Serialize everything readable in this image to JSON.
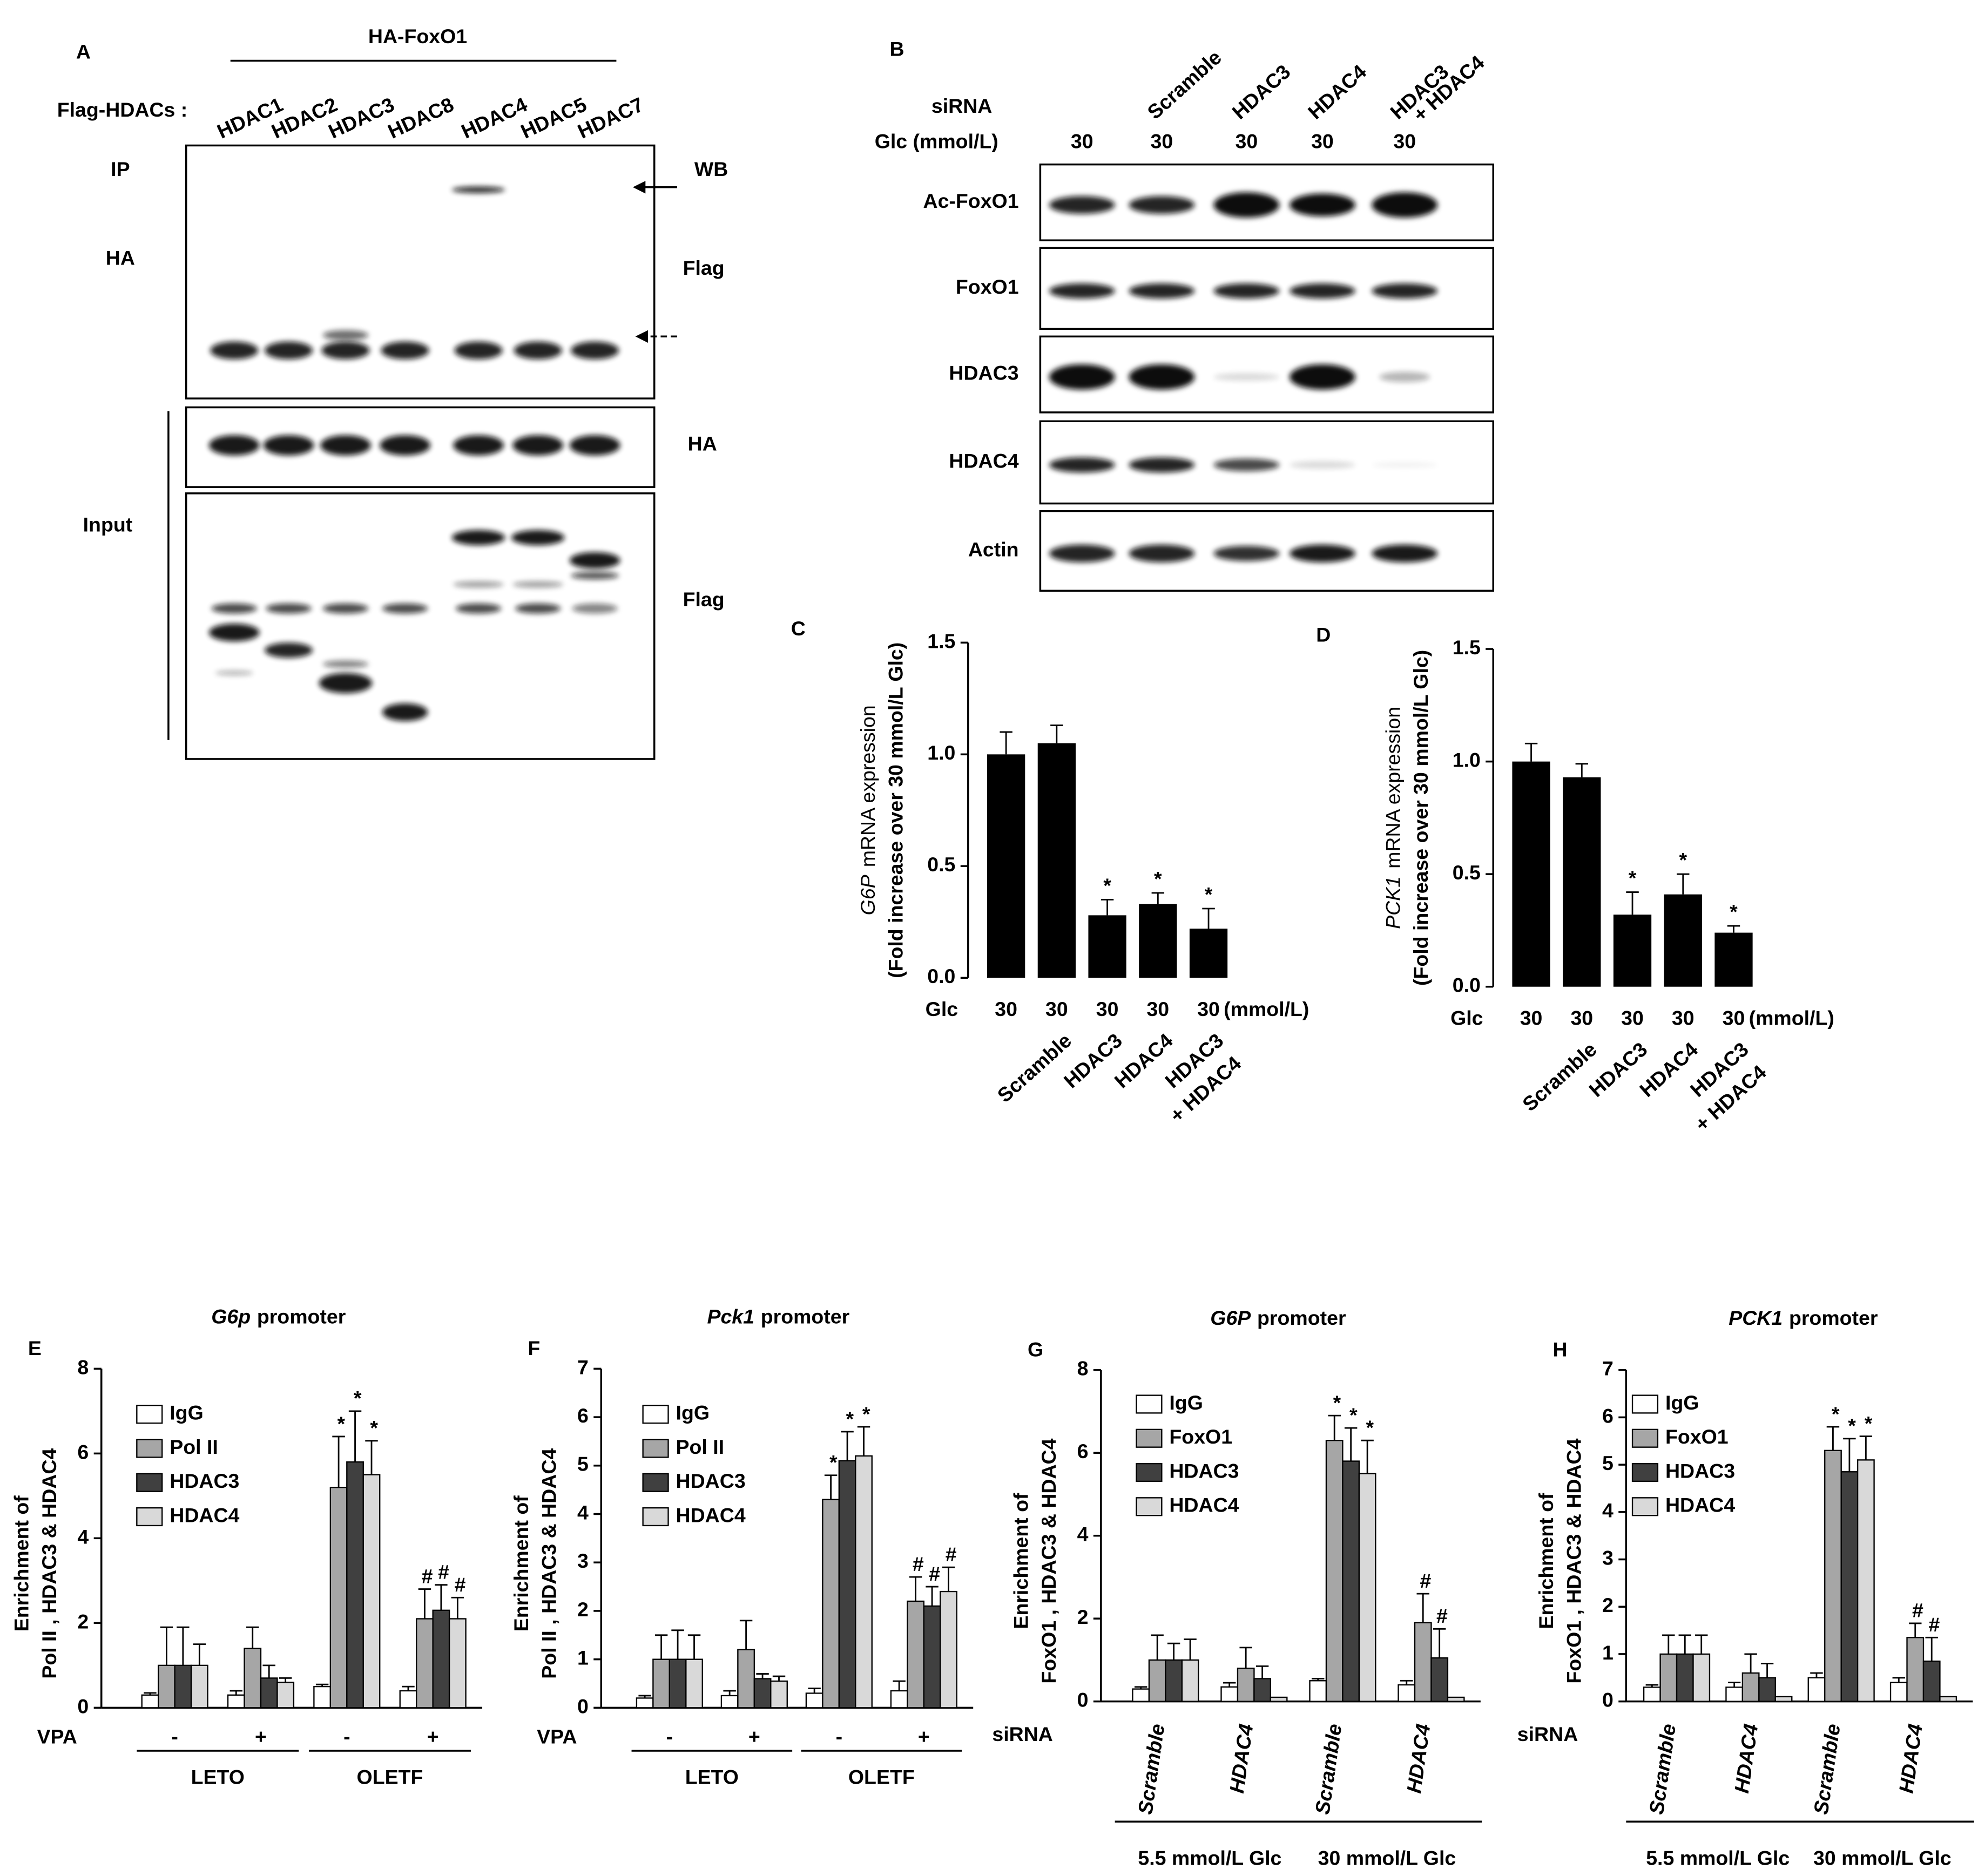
{
  "blots": {
    "A": {
      "label": "A",
      "title": "HA-FoxO1",
      "row_label": "Flag-HDACs :",
      "lanes": [
        "HDAC1",
        "HDAC2",
        "HDAC3",
        "HDAC8",
        "HDAC4",
        "HDAC5",
        "HDAC7"
      ],
      "left_labels": [
        "IP",
        "HA",
        "Input"
      ],
      "right_labels": [
        "WB",
        "Flag",
        "HA",
        "Flag"
      ]
    },
    "B": {
      "label": "B",
      "row_labels": [
        "siRNA",
        "Glc (mmol/L)"
      ],
      "sirna": [
        null,
        "Scramble",
        "HDAC3",
        "HDAC4",
        [
          "HDAC3",
          "+ HDAC4"
        ]
      ],
      "glc": [
        30,
        30,
        30,
        30,
        30
      ],
      "rows": [
        "Ac-FoxO1",
        "FoxO1",
        "HDAC3",
        "HDAC4",
        "Actin"
      ]
    }
  },
  "chart_data": [
    {
      "type": "bar",
      "label": "C",
      "ylabel_italic": "G6P",
      "ylabel": "mRNA expression",
      "ylabel2": "(Fold increase  over 30  mmol/L Glc)",
      "categories": [
        null,
        "Scramble",
        "HDAC3",
        "HDAC4",
        [
          "HDAC3",
          "+ HDAC4"
        ]
      ],
      "x_label": "Glc",
      "glc": [
        30,
        30,
        30,
        30,
        30
      ],
      "glc_unit": "(mmol/L)",
      "values": [
        1.0,
        1.05,
        0.28,
        0.33,
        0.22
      ],
      "errors": [
        0.1,
        0.08,
        0.07,
        0.05,
        0.09
      ],
      "annotations": [
        null,
        null,
        "*",
        "*",
        "*"
      ],
      "color": "#000000",
      "ylim": [
        0,
        1.5
      ],
      "yticks": [
        {
          "value": 0,
          "label": "0.0"
        },
        {
          "value": 0.5,
          "label": "0.5"
        },
        {
          "value": 1,
          "label": "1.0"
        },
        {
          "value": 1.5,
          "label": "1.5"
        }
      ]
    },
    {
      "type": "bar",
      "label": "D",
      "ylabel_italic": "PCK1",
      "ylabel": "mRNA expression",
      "ylabel2": "(Fold increase  over 30  mmol/L Glc)",
      "categories": [
        null,
        "Scramble",
        "HDAC3",
        "HDAC4",
        [
          "HDAC3",
          "+ HDAC4"
        ]
      ],
      "x_label": "Glc",
      "glc": [
        30,
        30,
        30,
        30,
        30
      ],
      "glc_unit": "(mmol/L)",
      "values": [
        1.0,
        0.93,
        0.32,
        0.41,
        0.24
      ],
      "errors": [
        0.08,
        0.06,
        0.1,
        0.09,
        0.03
      ],
      "annotations": [
        null,
        null,
        "*",
        "*",
        "*"
      ],
      "color": "#000000",
      "ylim": [
        0,
        1.5
      ],
      "yticks": [
        {
          "value": 0,
          "label": "0.0"
        },
        {
          "value": 0.5,
          "label": "0.5"
        },
        {
          "value": 1,
          "label": "1.0"
        },
        {
          "value": 1.5,
          "label": "1.5"
        }
      ]
    },
    {
      "type": "grouped_bar",
      "label": "E",
      "title_italic": "G6p",
      "title": "promoter",
      "ylabel": [
        "Enrichment of",
        "Pol II , HDAC3  & HDAC4"
      ],
      "x_label": "VPA",
      "categories": [
        "-",
        "+",
        "-",
        "+"
      ],
      "group_labels": [
        "LETO",
        "OLETF"
      ],
      "series": [
        {
          "name": "IgG",
          "color": "#ffffff",
          "values": [
            0.3,
            0.3,
            0.5,
            0.4
          ],
          "errors": [
            0.05,
            0.1,
            0.05,
            0.1
          ],
          "annotations": [
            null,
            null,
            null,
            null
          ]
        },
        {
          "name": "Pol II",
          "color": "#a6a6a6",
          "values": [
            1.0,
            1.4,
            5.2,
            2.1
          ],
          "errors": [
            0.9,
            0.5,
            1.2,
            0.7
          ],
          "annotations": [
            null,
            null,
            "*",
            "#"
          ]
        },
        {
          "name": "HDAC3",
          "color": "#404040",
          "values": [
            1.0,
            0.7,
            5.8,
            2.3
          ],
          "errors": [
            0.9,
            0.3,
            1.2,
            0.6
          ],
          "annotations": [
            null,
            null,
            "*",
            "#"
          ]
        },
        {
          "name": "HDAC4",
          "color": "#d9d9d9",
          "values": [
            1.0,
            0.6,
            5.5,
            2.1
          ],
          "errors": [
            0.5,
            0.1,
            0.8,
            0.5
          ],
          "annotations": [
            null,
            null,
            "*",
            "#"
          ]
        }
      ],
      "ylim": [
        0,
        8
      ],
      "yticks": [
        0,
        2,
        4,
        6,
        8
      ]
    },
    {
      "type": "grouped_bar",
      "label": "F",
      "title_italic": "Pck1",
      "title": "promoter",
      "ylabel": [
        "Enrichment of",
        "Pol II , HDAC3  & HDAC4"
      ],
      "x_label": "VPA",
      "categories": [
        "-",
        "+",
        "-",
        "+"
      ],
      "group_labels": [
        "LETO",
        "OLETF"
      ],
      "series": [
        {
          "name": "IgG",
          "color": "#ffffff",
          "values": [
            0.2,
            0.25,
            0.3,
            0.35
          ],
          "errors": [
            0.05,
            0.1,
            0.1,
            0.2
          ],
          "annotations": [
            null,
            null,
            null,
            null
          ]
        },
        {
          "name": "Pol II",
          "color": "#a6a6a6",
          "values": [
            1.0,
            1.2,
            4.3,
            2.2
          ],
          "errors": [
            0.5,
            0.6,
            0.5,
            0.5
          ],
          "annotations": [
            null,
            null,
            "*",
            "#"
          ]
        },
        {
          "name": "HDAC3",
          "color": "#404040",
          "values": [
            1.0,
            0.6,
            5.1,
            2.1
          ],
          "errors": [
            0.6,
            0.1,
            0.6,
            0.4
          ],
          "annotations": [
            null,
            null,
            "*",
            "#"
          ]
        },
        {
          "name": "HDAC4",
          "color": "#d9d9d9",
          "values": [
            1.0,
            0.55,
            5.2,
            2.4
          ],
          "errors": [
            0.5,
            0.1,
            0.6,
            0.5
          ],
          "annotations": [
            null,
            null,
            "*",
            "#"
          ]
        }
      ],
      "ylim": [
        0,
        7
      ],
      "yticks": [
        0,
        1,
        2,
        3,
        4,
        5,
        6,
        7
      ]
    },
    {
      "type": "grouped_bar",
      "label": "G",
      "title_italic": "G6P",
      "title": "promoter",
      "ylabel": [
        "Enrichment of",
        "FoxO1 , HDAC3  & HDAC4"
      ],
      "x_label": "siRNA",
      "categories": [
        "Scramble",
        "HDAC4",
        "Scramble",
        "HDAC4"
      ],
      "group_labels": [
        "5.5 mmol/L Glc",
        "30 mmol/L Glc"
      ],
      "series": [
        {
          "name": "IgG",
          "color": "#ffffff",
          "values": [
            0.3,
            0.35,
            0.5,
            0.4
          ],
          "errors": [
            0.05,
            0.1,
            0.05,
            0.1
          ],
          "annotations": [
            null,
            null,
            null,
            null
          ]
        },
        {
          "name": "FoxO1",
          "color": "#a6a6a6",
          "values": [
            1.0,
            0.8,
            6.3,
            1.9
          ],
          "errors": [
            0.6,
            0.5,
            0.6,
            0.7
          ],
          "annotations": [
            null,
            null,
            "*",
            "#"
          ]
        },
        {
          "name": "HDAC3",
          "color": "#404040",
          "values": [
            1.0,
            0.55,
            5.8,
            1.05
          ],
          "errors": [
            0.4,
            0.3,
            0.8,
            0.7
          ],
          "annotations": [
            null,
            null,
            "*",
            "#"
          ]
        },
        {
          "name": "HDAC4",
          "color": "#d9d9d9",
          "values": [
            1.0,
            0.1,
            5.5,
            0.1
          ],
          "errors": [
            0.5,
            0,
            0.8,
            0
          ],
          "annotations": [
            null,
            null,
            "*",
            null
          ]
        }
      ],
      "ylim": [
        0,
        8
      ],
      "yticks": [
        0,
        2,
        4,
        6,
        8
      ]
    },
    {
      "type": "grouped_bar",
      "label": "H",
      "title_italic": "PCK1",
      "title": "promoter",
      "ylabel": [
        "Enrichment of",
        "FoxO1 , HDAC3  & HDAC4"
      ],
      "x_label": "siRNA",
      "categories": [
        "Scramble",
        "HDAC4",
        "Scramble",
        "HDAC4"
      ],
      "group_labels": [
        "5.5 mmol/L Glc",
        "30 mmol/L Glc"
      ],
      "series": [
        {
          "name": "IgG",
          "color": "#ffffff",
          "values": [
            0.3,
            0.3,
            0.5,
            0.4
          ],
          "errors": [
            0.05,
            0.1,
            0.1,
            0.1
          ],
          "annotations": [
            null,
            null,
            null,
            null
          ]
        },
        {
          "name": "FoxO1",
          "color": "#a6a6a6",
          "values": [
            1.0,
            0.6,
            5.3,
            1.35
          ],
          "errors": [
            0.4,
            0.4,
            0.5,
            0.3
          ],
          "annotations": [
            null,
            null,
            "*",
            "#"
          ]
        },
        {
          "name": "HDAC3",
          "color": "#404040",
          "values": [
            1.0,
            0.5,
            4.85,
            0.85
          ],
          "errors": [
            0.4,
            0.3,
            0.7,
            0.5
          ],
          "annotations": [
            null,
            null,
            "*",
            "#"
          ]
        },
        {
          "name": "HDAC4",
          "color": "#d9d9d9",
          "values": [
            1.0,
            0.1,
            5.1,
            0.1
          ],
          "errors": [
            0.4,
            0,
            0.5,
            0
          ],
          "annotations": [
            null,
            null,
            "*",
            null
          ]
        }
      ],
      "ylim": [
        0,
        7
      ],
      "yticks": [
        0,
        1,
        2,
        3,
        4,
        5,
        6,
        7
      ]
    }
  ]
}
